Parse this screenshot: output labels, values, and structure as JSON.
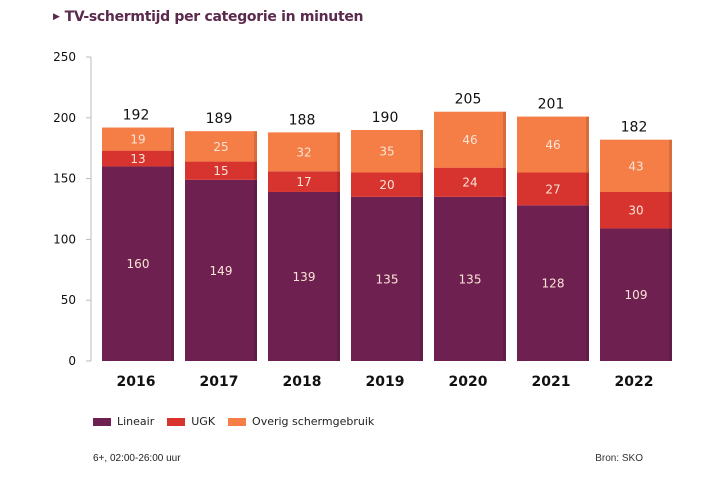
{
  "title": "TV-schermtijd per categorie in minuten",
  "title_marker": "▶",
  "footnote": "6+, 02:00-26:00 uur",
  "source": "Bron: SKO",
  "colors": {
    "title": "#5b2a4c",
    "Lineair": "#6e2150",
    "UGK": "#d7342f",
    "Overig schermgebruik": "#f47e45"
  },
  "chart_data": {
    "type": "bar",
    "stacked": true,
    "title": "TV-schermtijd per categorie in minuten",
    "xlabel": "",
    "ylabel": "",
    "ylim": [
      0,
      250
    ],
    "yticks": [
      0,
      50,
      100,
      150,
      200,
      250
    ],
    "grid": false,
    "legend_position": "bottom-left",
    "categories": [
      "2016",
      "2017",
      "2018",
      "2019",
      "2020",
      "2021",
      "2022"
    ],
    "series": [
      {
        "name": "Lineair",
        "values": [
          160,
          149,
          139,
          135,
          135,
          128,
          109
        ]
      },
      {
        "name": "UGK",
        "values": [
          13,
          15,
          17,
          20,
          24,
          27,
          30
        ]
      },
      {
        "name": "Overig schermgebruik",
        "values": [
          19,
          25,
          32,
          35,
          46,
          46,
          43
        ]
      }
    ],
    "totals": [
      192,
      189,
      188,
      190,
      205,
      201,
      182
    ]
  }
}
